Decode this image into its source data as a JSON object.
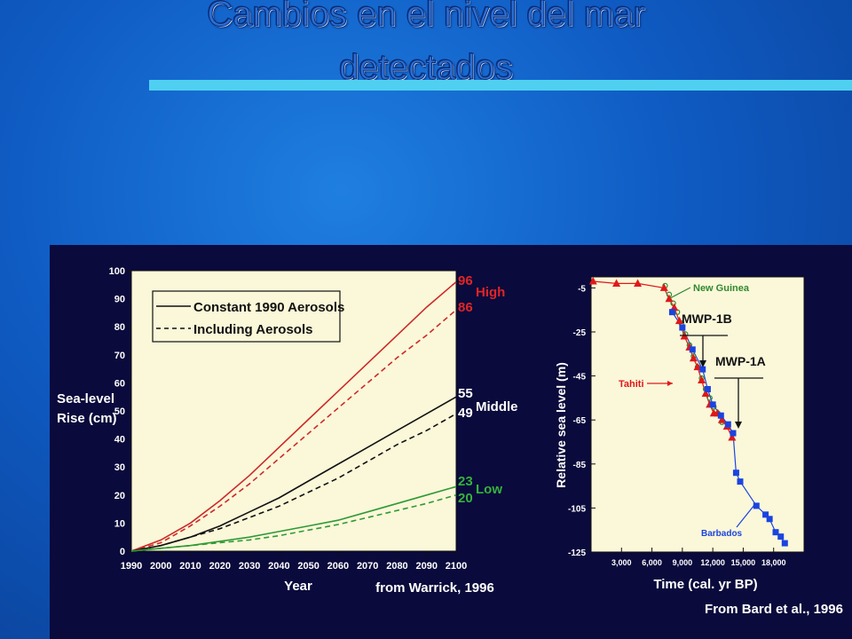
{
  "slide": {
    "title_line1": "Cambios en el nivel del mar",
    "title_line2": "detectados"
  },
  "colors": {
    "background": "#0f5cc4",
    "title_rule": "#4fd0f0",
    "panel": "#0a0a3c",
    "plot_bg": "#fbf7d9",
    "high": "#cc2a2a",
    "middle": "#111111",
    "low": "#2f9a35",
    "tahiti": "#e01818",
    "new_guinea": "#2f8a2f",
    "barbados": "#1a44e0"
  },
  "chart_data": [
    {
      "type": "line",
      "ylabel_line1": "Sea-level",
      "ylabel_line2": "Rise (cm)",
      "xlabel": "Year",
      "source": "from Warrick, 1996",
      "xlim": [
        1990,
        2100
      ],
      "ylim": [
        0,
        100
      ],
      "xticks": [
        1990,
        2000,
        2010,
        2020,
        2030,
        2040,
        2050,
        2060,
        2070,
        2080,
        2090,
        2100
      ],
      "yticks": [
        0,
        10,
        20,
        30,
        40,
        50,
        60,
        70,
        80,
        90,
        100
      ],
      "legend": {
        "placement": "top-left",
        "solid_label": "Constant 1990 Aerosols",
        "dashed_label": "Including Aerosols"
      },
      "scenario_labels": {
        "high": "High",
        "middle": "Middle",
        "low": "Low"
      },
      "end_labels": {
        "high_solid": "96",
        "high_dashed": "86",
        "middle_solid": "55",
        "middle_dashed": "49",
        "low_solid": "23",
        "low_dashed": "20"
      },
      "x": [
        1990,
        2000,
        2010,
        2020,
        2030,
        2040,
        2050,
        2060,
        2070,
        2080,
        2090,
        2100
      ],
      "series": [
        {
          "scenario": "high",
          "style": "solid",
          "values": [
            0,
            4,
            10,
            18,
            27,
            37,
            47,
            57,
            67,
            77,
            87,
            96
          ]
        },
        {
          "scenario": "high",
          "style": "dashed",
          "values": [
            0,
            3,
            9,
            16,
            24,
            33,
            42,
            51,
            60,
            69,
            77,
            86
          ]
        },
        {
          "scenario": "middle",
          "style": "solid",
          "values": [
            0,
            2,
            5,
            9,
            14,
            19,
            25,
            31,
            37,
            43,
            49,
            55
          ]
        },
        {
          "scenario": "middle",
          "style": "dashed",
          "values": [
            0,
            2,
            5,
            8,
            12,
            16,
            21,
            26,
            32,
            38,
            43,
            49
          ]
        },
        {
          "scenario": "low",
          "style": "solid",
          "values": [
            0,
            1,
            2,
            3.5,
            5,
            7,
            9,
            11,
            14,
            17,
            20,
            23
          ]
        },
        {
          "scenario": "low",
          "style": "dashed",
          "values": [
            0,
            1,
            2,
            3,
            4,
            5.5,
            7.5,
            9.5,
            12,
            14.5,
            17,
            20
          ]
        }
      ]
    },
    {
      "type": "scatter",
      "ylabel": "Relative sea level (m)",
      "xlabel": "Time (cal. yr BP)",
      "source": "From Bard et al., 1996",
      "xlim": [
        0,
        21000
      ],
      "ylim": [
        -125,
        0
      ],
      "xticks": [
        3000,
        6000,
        9000,
        12000,
        15000,
        18000
      ],
      "xtick_labels": [
        "3,000",
        "6,000",
        "9,000",
        "12,000",
        "15,000",
        "18,000"
      ],
      "yticks": [
        -5,
        -25,
        -45,
        -65,
        -85,
        -105,
        -125
      ],
      "annotations": {
        "new_guinea": "New Guinea",
        "tahiti": "Tahiti",
        "barbados": "Barbados",
        "mwp1b": "MWP-1B",
        "mwp1a": "MWP-1A"
      },
      "series": [
        {
          "name": "Tahiti",
          "marker": "triangle",
          "x": [
            200,
            2500,
            4600,
            7200,
            7700,
            8200,
            8700,
            9200,
            9700,
            10100,
            10500,
            10900,
            11300,
            11700,
            12100,
            12500,
            12900,
            13400,
            13900
          ],
          "y": [
            -2,
            -3,
            -3,
            -5,
            -10,
            -14,
            -20,
            -27,
            -32,
            -37,
            -41,
            -47,
            -53,
            -58,
            -62,
            -62,
            -65,
            -68,
            -73
          ]
        },
        {
          "name": "New Guinea",
          "marker": "open-circle",
          "x": [
            7300,
            7700,
            8100,
            8500,
            8900,
            9300,
            9700,
            10100,
            10500,
            10900,
            11300,
            11700,
            12100,
            12500,
            12900
          ],
          "y": [
            -4,
            -8,
            -12,
            -16,
            -21,
            -26,
            -31,
            -36,
            -41,
            -46,
            -51,
            -55,
            -59,
            -62,
            -66
          ]
        },
        {
          "name": "Barbados",
          "marker": "square",
          "x": [
            8000,
            9000,
            10000,
            11000,
            11500,
            12000,
            12800,
            13500,
            14000,
            14300,
            14700,
            16300,
            17200,
            17600,
            18200,
            18700,
            19100
          ],
          "y": [
            -16,
            -23,
            -33,
            -42,
            -51,
            -58,
            -63,
            -67,
            -71,
            -89,
            -93,
            -104,
            -108,
            -110,
            -116,
            -118,
            -121
          ]
        }
      ]
    }
  ]
}
